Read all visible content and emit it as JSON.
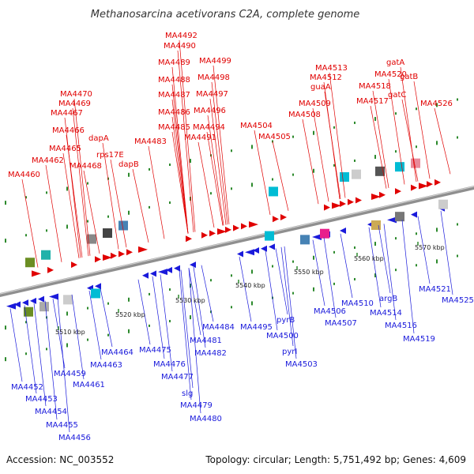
{
  "title": "Methanosarcina acetivorans C2A, complete genome",
  "accession": "Accession: NC_003552",
  "topology": "Topology: circular; Length: 5,751,492 bp; Genes: 4,609",
  "colors": {
    "forward": "#e00000",
    "reverse": "#1a1adb",
    "backbone": "#8c8c8c",
    "ticks": "#2d8a2d"
  },
  "scale_labels": [
    "5510 kbp",
    "5520 kbp",
    "5530 kbp",
    "5540 kbp",
    "5550 kbp",
    "5560 kbp",
    "5570 kbp"
  ],
  "forward_labels": [
    "MA4460",
    "MA4462",
    "MA4465",
    "MA4466",
    "MA4467",
    "MA4469",
    "MA4470",
    "MA4468",
    "rps17E",
    "dapA",
    "dapB",
    "MA4483",
    "MA4485",
    "MA4486",
    "MA4487",
    "MA4488",
    "MA4489",
    "MA4490",
    "MA4492",
    "MA4491",
    "MA4494",
    "MA4496",
    "MA4497",
    "MA4498",
    "MA4499",
    "MA4504",
    "MA4505",
    "MA4508",
    "MA4509",
    "guaA",
    "MA4512",
    "MA4513",
    "MA4517",
    "MA4518",
    "MA4520",
    "gatA",
    "gatB",
    "gatC",
    "MA4526"
  ],
  "reverse_labels": [
    "MA4452",
    "MA4453",
    "MA4454",
    "MA4455",
    "MA4456",
    "MA4459",
    "MA4461",
    "MA4463",
    "MA4464",
    "MA4475",
    "MA4476",
    "MA4477",
    "slg",
    "MA4479",
    "MA4480",
    "MA4481",
    "MA4482",
    "MA4484",
    "MA4495",
    "MA4500",
    "pyrB",
    "pyrI",
    "MA4503",
    "MA4506",
    "MA4507",
    "MA4510",
    "argB",
    "MA4514",
    "MA4516",
    "MA4519",
    "MA4521",
    "MA4525"
  ]
}
